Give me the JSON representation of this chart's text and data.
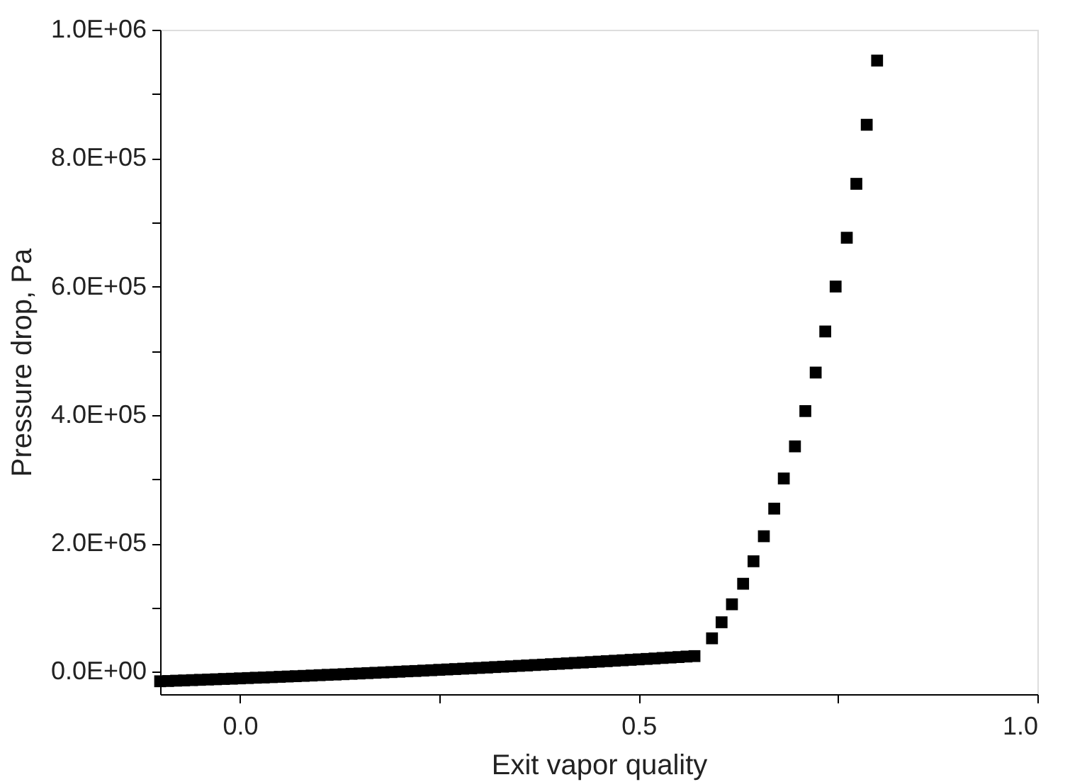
{
  "chart_data": {
    "type": "scatter",
    "xlabel": "Exit vapor quality",
    "ylabel": "Pressure drop, Pa",
    "marker": "square",
    "grid": false,
    "xlim": [
      -0.1,
      1.0
    ],
    "xticks": [
      {
        "value": 0.0,
        "label": "0.0"
      },
      {
        "value": 0.25,
        "label": null
      },
      {
        "value": 0.5,
        "label": "0.5"
      },
      {
        "value": 0.75,
        "label": null
      },
      {
        "value": 1.0,
        "label": "1.0"
      }
    ],
    "ylim": [
      -35000,
      1000000
    ],
    "yticks": [
      {
        "value": 0,
        "label": "0.0E+00"
      },
      {
        "value": 100000,
        "label": null
      },
      {
        "value": 200000,
        "label": "2.0E+05"
      },
      {
        "value": 300000,
        "label": null
      },
      {
        "value": 400000,
        "label": "4.0E+05"
      },
      {
        "value": 500000,
        "label": null
      },
      {
        "value": 600000,
        "label": "6.0E+05"
      },
      {
        "value": 700000,
        "label": null
      },
      {
        "value": 800000,
        "label": "8.0E+05"
      },
      {
        "value": 900000,
        "label": null
      },
      {
        "value": 1000000,
        "label": "1.0E+06"
      }
    ],
    "series": [
      {
        "color": "#000000",
        "x": [
          -0.1,
          -0.09,
          -0.08,
          -0.07,
          -0.06,
          -0.05,
          -0.04,
          -0.03,
          -0.02,
          -0.01,
          0.0,
          0.01,
          0.02,
          0.03,
          0.04,
          0.05,
          0.06,
          0.07,
          0.08,
          0.09,
          0.1,
          0.11,
          0.12,
          0.13,
          0.14,
          0.15,
          0.16,
          0.17,
          0.18,
          0.19,
          0.2,
          0.21,
          0.22,
          0.23,
          0.24,
          0.25,
          0.26,
          0.27,
          0.28,
          0.29,
          0.3,
          0.31,
          0.32,
          0.33,
          0.34,
          0.35,
          0.36,
          0.37,
          0.38,
          0.39,
          0.4,
          0.41,
          0.42,
          0.43,
          0.44,
          0.45,
          0.46,
          0.47,
          0.48,
          0.49,
          0.5,
          0.51,
          0.52,
          0.53,
          0.54,
          0.55,
          0.56,
          0.57,
          0.592,
          0.604,
          0.617,
          0.631,
          0.644,
          0.657,
          0.67,
          0.682,
          0.696,
          0.709,
          0.722,
          0.734,
          0.747,
          0.761,
          0.773,
          0.786,
          0.799
        ],
        "values": [
          -14900,
          -14500,
          -14000,
          -13600,
          -13100,
          -12700,
          -12200,
          -11800,
          -11300,
          -10900,
          -10400,
          -9900,
          -9400,
          -9000,
          -8500,
          -8000,
          -7500,
          -7000,
          -6500,
          -6000,
          -5400,
          -4900,
          -4400,
          -3900,
          -3300,
          -2800,
          -2200,
          -1700,
          -1100,
          -600,
          0,
          600,
          1100,
          1700,
          2300,
          2900,
          3500,
          4100,
          4700,
          5300,
          5900,
          6500,
          7200,
          7800,
          8400,
          9100,
          9700,
          10400,
          11000,
          11700,
          12300,
          13000,
          13700,
          14300,
          15000,
          15700,
          16400,
          17100,
          17800,
          18500,
          19200,
          19900,
          20600,
          21400,
          22100,
          22800,
          23600,
          24300,
          52000,
          77000,
          105000,
          137000,
          172000,
          211000,
          254000,
          301000,
          351000,
          406000,
          466000,
          530000,
          600000,
          676000,
          760000,
          852000,
          952000
        ]
      }
    ]
  }
}
